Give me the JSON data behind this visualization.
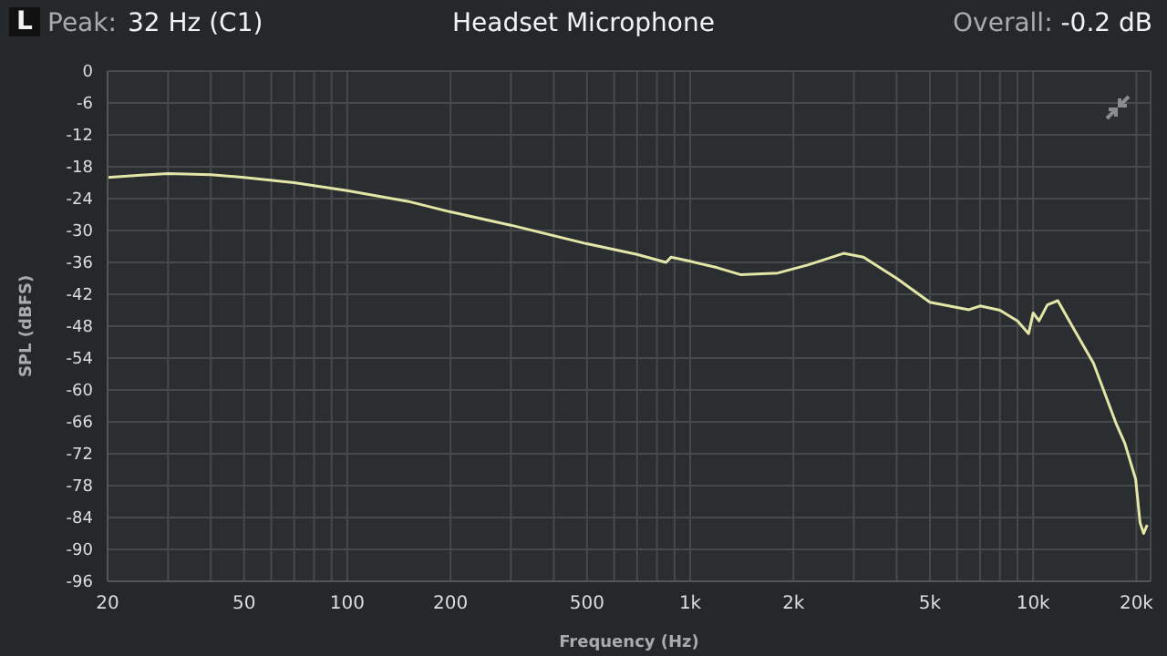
{
  "chart_data": {
    "type": "line",
    "title": "Headset Microphone",
    "xlabel": "Frequency (Hz)",
    "ylabel": "SPL (dBFS)",
    "annotations": [
      "L",
      "Peak:",
      "32 Hz (C1)",
      "Overall:",
      "-0.2 dB"
    ],
    "log": "x",
    "grid": true,
    "legend": false,
    "marker": "none",
    "line_style": "solid",
    "xlim": [
      20,
      22000
    ],
    "xticks": [
      20,
      {
        "value": 30,
        "label": null
      },
      {
        "value": 40,
        "label": null
      },
      50,
      {
        "value": 60,
        "label": null
      },
      {
        "value": 70,
        "label": null
      },
      {
        "value": 80,
        "label": null
      },
      {
        "value": 90,
        "label": null
      },
      100,
      200,
      {
        "value": 300,
        "label": null
      },
      {
        "value": 400,
        "label": null
      },
      500,
      {
        "value": 600,
        "label": null
      },
      {
        "value": 700,
        "label": null
      },
      {
        "value": 800,
        "label": null
      },
      {
        "value": 900,
        "label": null
      },
      {
        "value": 1000,
        "label": "1k"
      },
      {
        "value": 2000,
        "label": "2k"
      },
      {
        "value": 3000,
        "label": null
      },
      {
        "value": 4000,
        "label": null
      },
      {
        "value": 5000,
        "label": "5k"
      },
      {
        "value": 6000,
        "label": null
      },
      {
        "value": 7000,
        "label": null
      },
      {
        "value": 8000,
        "label": null
      },
      {
        "value": 9000,
        "label": null
      },
      {
        "value": 10000,
        "label": "10k"
      },
      {
        "value": 20000,
        "label": "20k"
      }
    ],
    "ylim": [
      -96,
      0
    ],
    "yticks": [
      -96,
      -90,
      -84,
      -78,
      -72,
      -66,
      -60,
      -54,
      -48,
      -42,
      -36,
      -30,
      -24,
      -18,
      -12,
      -6,
      0
    ],
    "series": [
      {
        "color": "#e3e6a6",
        "x": [
          20,
          25,
          30,
          40,
          50,
          70,
          100,
          150,
          200,
          300,
          500,
          700,
          850,
          880,
          1000,
          1200,
          1400,
          1800,
          2200,
          2800,
          3200,
          4000,
          5000,
          6000,
          6500,
          7000,
          8000,
          9000,
          9700,
          10000,
          10400,
          11000,
          11800,
          13000,
          15000,
          17500,
          18500,
          19900,
          20500,
          21000,
          21500
        ],
        "values": [
          -20,
          -19.6,
          -19.3,
          -19.5,
          -20,
          -21,
          -22.5,
          -24.5,
          -26.5,
          -29,
          -32.5,
          -34.5,
          -36,
          -35,
          -35.8,
          -37,
          -38.3,
          -38,
          -36.5,
          -34.3,
          -35,
          -39,
          -43.5,
          -44.5,
          -44.9,
          -44.2,
          -45,
          -47,
          -49.4,
          -45.5,
          -47,
          -44,
          -43.2,
          -48,
          -55,
          -66.5,
          -70,
          -76.8,
          -85,
          -87,
          -85.4
        ]
      }
    ]
  }
}
